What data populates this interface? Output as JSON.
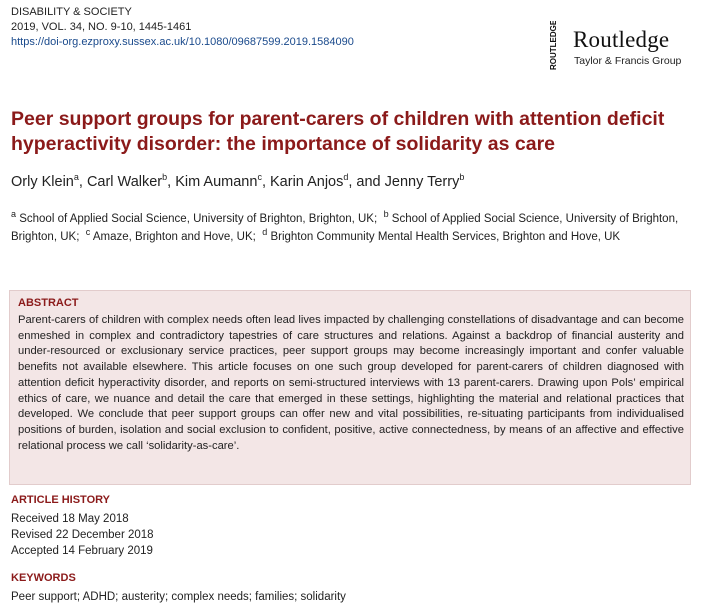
{
  "journal": {
    "name": "DISABILITY & SOCIETY",
    "citation": "2019, VOL. 34, NO. 9-10, 1445-1461",
    "doi": "https://doi-org.ezproxy.sussex.ac.uk/10.1080/09687599.2019.1584090"
  },
  "publisher": {
    "vertical_mark": "ROUTLEDGE",
    "name": "Routledge",
    "group": "Taylor & Francis Group"
  },
  "article": {
    "title_line1": "Peer support groups for parent-carers of children with attention deficit",
    "title_line2": "hyperactivity disorder: the importance of solidarity as care"
  },
  "authors": [
    {
      "name": "Orly Klein",
      "sup": "a",
      "sep": ", "
    },
    {
      "name": "Carl Walker",
      "sup": "b",
      "sep": ", "
    },
    {
      "name": "Kim Aumann",
      "sup": "c",
      "sep": ", "
    },
    {
      "name": "Karin Anjos",
      "sup": "d",
      "sep": ", and "
    },
    {
      "name": "Jenny Terry",
      "sup": "b",
      "sep": ""
    }
  ],
  "affiliations": {
    "a_sup": "a",
    "a": " School of Applied Social Science, University of Brighton, Brighton, UK;",
    "b_sup": "b",
    "b": " School of Applied Social Science, University of Brighton, Brighton, UK;",
    "c_sup": "c",
    "c": " Amaze, Brighton and Hove, UK;",
    "d_sup": "d",
    "d": " Brighton Community Mental Health Services, Brighton and Hove, UK"
  },
  "abstract": {
    "heading": "ABSTRACT",
    "text": "Parent-carers of children with complex needs often lead lives impacted by challenging constellations of disadvantage and can become enmeshed in complex and contradictory tapestries of care structures and relations. Against a backdrop of financial austerity and under-resourced or exclusionary service practices, peer support groups may become increasingly important and confer valuable benefits not available elsewhere. This article focuses on one such group developed for parent-carers of children diagnosed with attention deficit hyperactivity disorder, and reports on semi-structured interviews with 13 parent-carers. Drawing upon Pols’ empirical ethics of care, we nuance and detail the care that emerged in these settings, highlighting the material and relational practices that developed. We conclude that peer support groups can offer new and vital possibilities, re-situating participants from individualised positions of burden, isolation and social exclusion to confident, positive, active connectedness, by means of an affective and effective relational process we call ‘solidarity-as-care’."
  },
  "history": {
    "heading": "ARTICLE HISTORY",
    "received": "Received 18 May 2018",
    "revised": "Revised 22 December 2018",
    "accepted": "Accepted 14 February 2019"
  },
  "keywords": {
    "heading": "KEYWORDS",
    "text": "Peer support; ADHD; austerity; complex needs; families; solidarity"
  },
  "colors": {
    "accent": "#8b1a1a",
    "abstract_bg": "#f3e6e6",
    "link": "#1a4a8c"
  }
}
